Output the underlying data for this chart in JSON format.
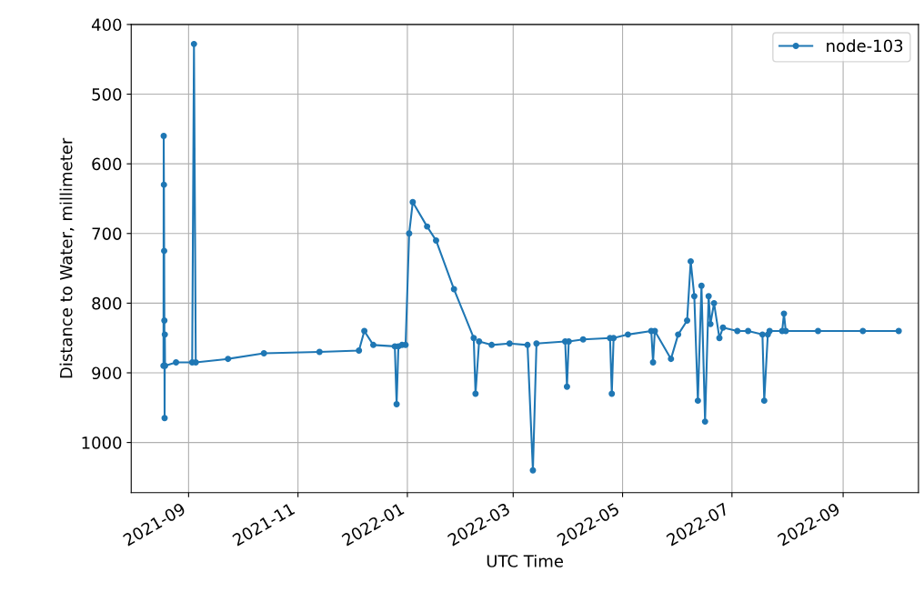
{
  "chart_data": {
    "type": "line",
    "xlabel": "UTC Time",
    "ylabel": "Distance to Water, millimeter",
    "xlim": [
      "2021-07-31",
      "2022-10-13"
    ],
    "ylim": [
      1072,
      400
    ],
    "xticks": [
      {
        "value": "2021-09-01",
        "label": "2021-09"
      },
      {
        "value": "2021-11-01",
        "label": "2021-11"
      },
      {
        "value": "2022-01-01",
        "label": "2022-01"
      },
      {
        "value": "2022-03-01",
        "label": "2022-03"
      },
      {
        "value": "2022-05-01",
        "label": "2022-05"
      },
      {
        "value": "2022-07-01",
        "label": "2022-07"
      },
      {
        "value": "2022-09-01",
        "label": "2022-09"
      }
    ],
    "yticks": [
      400,
      500,
      600,
      700,
      800,
      900,
      1000
    ],
    "grid": true,
    "legend": "top right",
    "marker": "circle",
    "line_style": "solid",
    "series": [
      {
        "name": "node-103",
        "color": "#1f77b4",
        "x": [
          "2021-08-18T00:00",
          "2021-08-18T03:00",
          "2021-08-18T06:00",
          "2021-08-18T09:00",
          "2021-08-18T12:00",
          "2021-08-18T15:00",
          "2021-08-18T18:00",
          "2021-08-18T21:00",
          "2021-08-25",
          "2021-09-03",
          "2021-09-04",
          "2021-09-05",
          "2021-09-23",
          "2021-10-13",
          "2021-11-13",
          "2021-12-05",
          "2021-12-08",
          "2021-12-13",
          "2021-12-25",
          "2021-12-26",
          "2021-12-27",
          "2021-12-29",
          "2021-12-31",
          "2022-01-02",
          "2022-01-04",
          "2022-01-12",
          "2022-01-17",
          "2022-01-27",
          "2022-02-07",
          "2022-02-08",
          "2022-02-10",
          "2022-02-17",
          "2022-02-27",
          "2022-03-09",
          "2022-03-12",
          "2022-03-14",
          "2022-03-30",
          "2022-03-31",
          "2022-04-01",
          "2022-04-09",
          "2022-04-24",
          "2022-04-25",
          "2022-04-26",
          "2022-05-04",
          "2022-05-17",
          "2022-05-18",
          "2022-05-19",
          "2022-05-28",
          "2022-06-01",
          "2022-06-06",
          "2022-06-08",
          "2022-06-10",
          "2022-06-12",
          "2022-06-14",
          "2022-06-16",
          "2022-06-18",
          "2022-06-19",
          "2022-06-21",
          "2022-06-24",
          "2022-06-26",
          "2022-07-04",
          "2022-07-10",
          "2022-07-18",
          "2022-07-19",
          "2022-07-21",
          "2022-07-22",
          "2022-07-29",
          "2022-07-30",
          "2022-07-31",
          "2022-08-18",
          "2022-09-12",
          "2022-10-02"
        ],
        "values": [
          890,
          560,
          630,
          725,
          825,
          965,
          845,
          890,
          885,
          885,
          428,
          885,
          880,
          872,
          870,
          868,
          840,
          860,
          862,
          945,
          862,
          860,
          860,
          700,
          655,
          690,
          710,
          780,
          850,
          930,
          855,
          860,
          858,
          860,
          1040,
          858,
          855,
          920,
          855,
          852,
          850,
          930,
          850,
          845,
          840,
          885,
          840,
          880,
          845,
          825,
          740,
          790,
          940,
          775,
          970,
          790,
          830,
          800,
          850,
          835,
          840,
          840,
          845,
          940,
          845,
          840,
          840,
          815,
          840,
          840,
          840,
          840
        ]
      }
    ]
  }
}
